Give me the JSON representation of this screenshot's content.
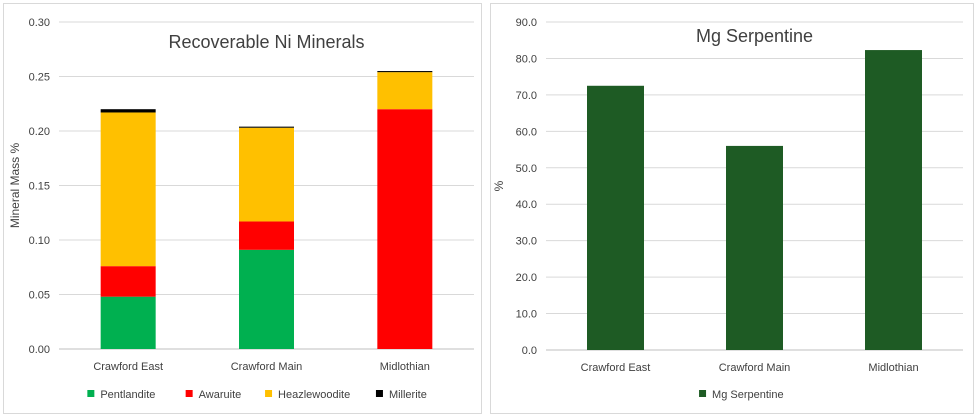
{
  "chart_data": [
    {
      "type": "bar",
      "stacked": true,
      "title": "Recoverable Ni Minerals",
      "xlabel": "",
      "ylabel": "Mineral Mass %",
      "ylim": [
        0,
        0.3
      ],
      "yticks": [
        "0.00",
        "0.05",
        "0.10",
        "0.15",
        "0.20",
        "0.25",
        "0.30"
      ],
      "categories": [
        "Crawford East",
        "Crawford Main",
        "Midlothian"
      ],
      "grid": true,
      "legend_position": "bottom",
      "series": [
        {
          "name": "Pentlandite",
          "color": "#00b050",
          "values": [
            0.048,
            0.091,
            0.0
          ]
        },
        {
          "name": "Awaruite",
          "color": "#ff0000",
          "values": [
            0.028,
            0.026,
            0.22
          ]
        },
        {
          "name": "Heazlewoodite",
          "color": "#ffc000",
          "values": [
            0.141,
            0.086,
            0.034
          ]
        },
        {
          "name": "Millerite",
          "color": "#000000",
          "values": [
            0.003,
            0.001,
            0.001
          ]
        }
      ]
    },
    {
      "type": "bar",
      "title": "Mg Serpentine",
      "xlabel": "",
      "ylabel": "%",
      "ylim": [
        0,
        90
      ],
      "yticks": [
        "0.0",
        "10.0",
        "20.0",
        "30.0",
        "40.0",
        "50.0",
        "60.0",
        "70.0",
        "80.0",
        "90.0"
      ],
      "categories": [
        "Crawford East",
        "Crawford Main",
        "Midlothian"
      ],
      "grid": true,
      "legend_position": "bottom",
      "series": [
        {
          "name": "Mg Serpentine",
          "color": "#1e5b24",
          "values": [
            72.5,
            56.0,
            82.3
          ]
        }
      ]
    }
  ]
}
